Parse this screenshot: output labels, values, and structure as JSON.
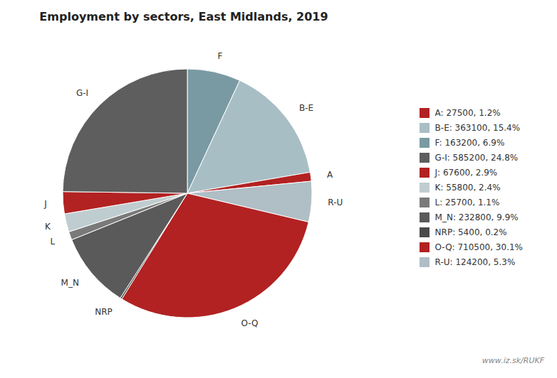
{
  "chart_data": {
    "type": "pie",
    "title": "Employment by sectors, East Midlands, 2019",
    "categories": [
      "F",
      "B-E",
      "A",
      "R-U",
      "O-Q",
      "NRP",
      "M_N",
      "L",
      "K",
      "J",
      "G-I"
    ],
    "values": [
      163200,
      363100,
      27500,
      124200,
      710500,
      5400,
      232800,
      25700,
      55800,
      67600,
      585200
    ],
    "colors": [
      "#7a9aa3",
      "#a8bec5",
      "#b22222",
      "#b0bec5",
      "#b22222",
      "#4a4a4a",
      "#5a5a5a",
      "#7a7a7a",
      "#c0cdd0",
      "#b22222",
      "#5e5e5e"
    ],
    "legend": "right",
    "legend_entries": [
      {
        "label": "A: 27500, 1.2%",
        "color": "#b22222"
      },
      {
        "label": "B-E: 363100, 15.4%",
        "color": "#a8bec5"
      },
      {
        "label": "F: 163200, 6.9%",
        "color": "#7a9aa3"
      },
      {
        "label": "G-I: 585200, 24.8%",
        "color": "#5e5e5e"
      },
      {
        "label": "J: 67600, 2.9%",
        "color": "#b22222"
      },
      {
        "label": "K: 55800, 2.4%",
        "color": "#c0cdd0"
      },
      {
        "label": "L: 25700, 1.1%",
        "color": "#7a7a7a"
      },
      {
        "label": "M_N: 232800, 9.9%",
        "color": "#5a5a5a"
      },
      {
        "label": "NRP: 5400, 0.2%",
        "color": "#4a4a4a"
      },
      {
        "label": "O-Q: 710500, 30.1%",
        "color": "#b22222"
      },
      {
        "label": "R-U: 124200, 5.3%",
        "color": "#b0bec5"
      }
    ],
    "annotations": [
      "www.iz.sk/RUKF"
    ]
  }
}
